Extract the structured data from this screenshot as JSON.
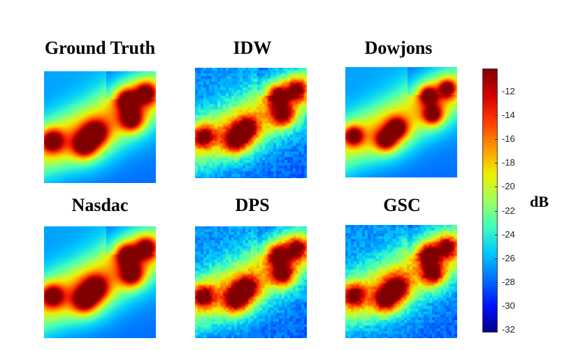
{
  "panels": [
    {
      "title": "Ground Truth",
      "variant": "smooth"
    },
    {
      "title": "IDW",
      "variant": "noisy"
    },
    {
      "title": "Dowjons",
      "variant": "sharp"
    },
    {
      "title": "Nasdac",
      "variant": "smooth"
    },
    {
      "title": "DPS",
      "variant": "noisy"
    },
    {
      "title": "GSC",
      "variant": "noisy"
    }
  ],
  "colorbar": {
    "unit": "dB",
    "ticks": [
      "-12",
      "-14",
      "-16",
      "-18",
      "-20",
      "-22",
      "-24",
      "-26",
      "-28",
      "-30",
      "-32"
    ],
    "colors": [
      "#800000",
      "#d40000",
      "#ff3b00",
      "#ff9800",
      "#f0f000",
      "#9fff5f",
      "#40ffbf",
      "#00c8ff",
      "#0070ff",
      "#0010ff",
      "#000088"
    ]
  }
}
